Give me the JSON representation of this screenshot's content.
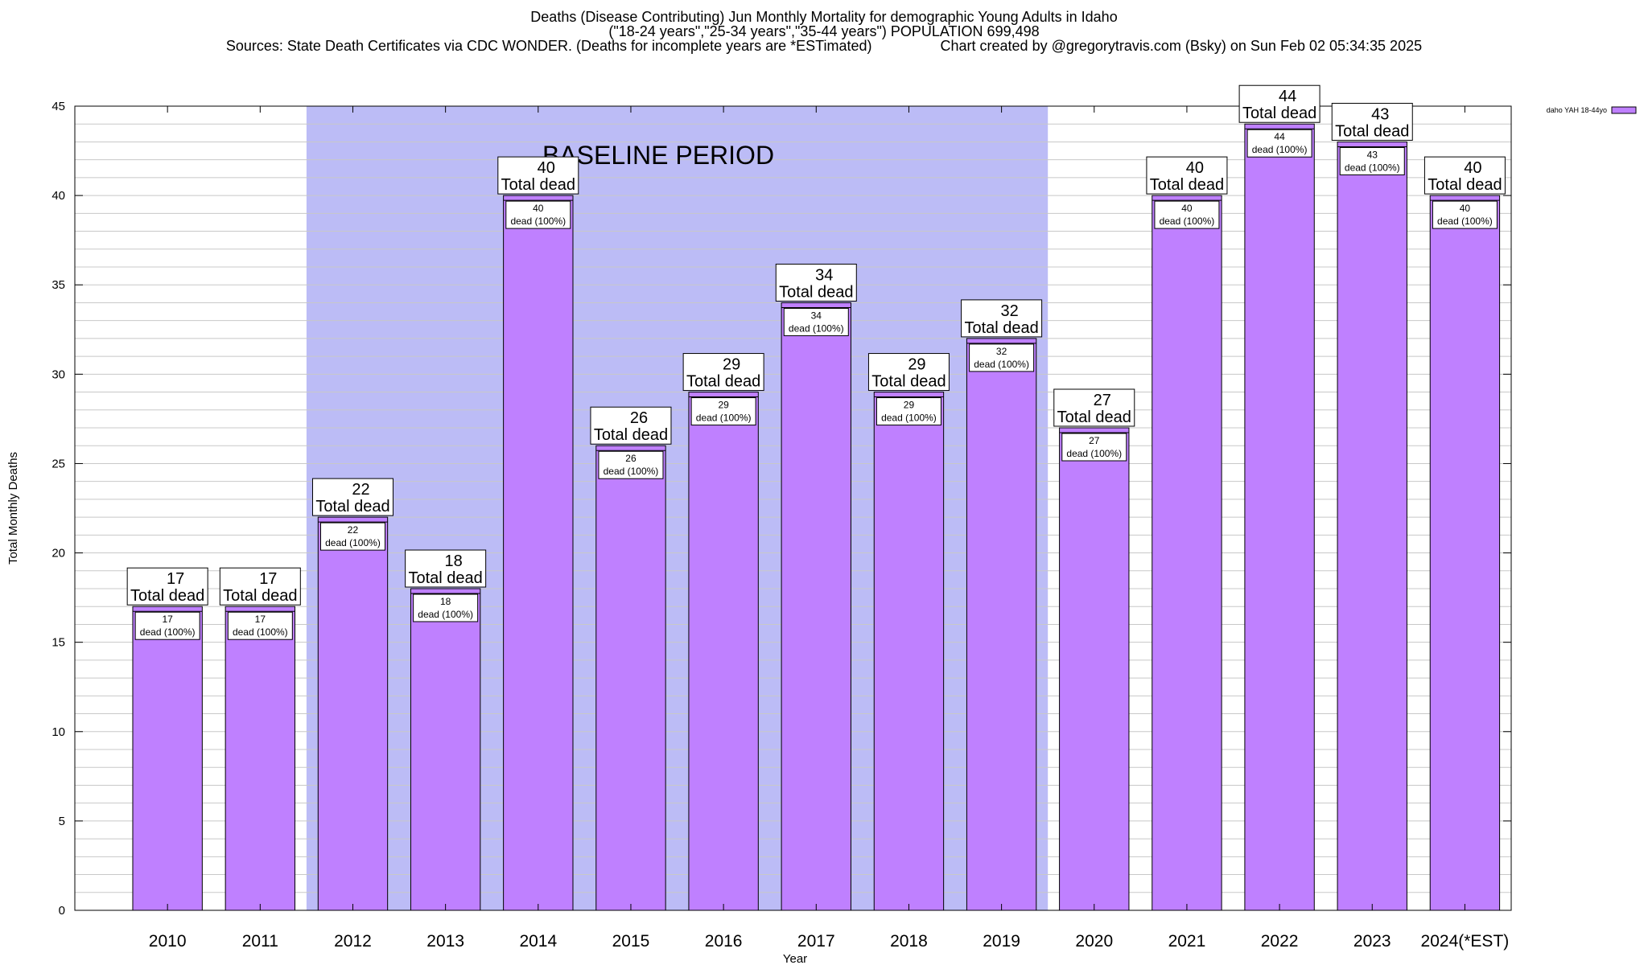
{
  "header": {
    "title": "Deaths (Disease Contributing) Jun Monthly Mortality for demographic Young Adults in Idaho",
    "subtitle": "(\"18-24 years\",\"25-34 years\",\"35-44 years\") POPULATION 699,498",
    "source": "Sources: State Death Certificates via CDC WONDER. (Deaths for incomplete years are *ESTimated)",
    "credit": "Chart created by @gregorytravis.com (Bsky) on Sun Feb 02 05:34:35 2025"
  },
  "chart_data": {
    "type": "bar",
    "categories": [
      "2010",
      "2011",
      "2012",
      "2013",
      "2014",
      "2015",
      "2016",
      "2017",
      "2018",
      "2019",
      "2020",
      "2021",
      "2022",
      "2023",
      "2024(*EST)"
    ],
    "series": [
      {
        "name": "daho YAH 18-44yo",
        "values": [
          17,
          17,
          22,
          18,
          40,
          26,
          29,
          34,
          29,
          32,
          27,
          40,
          44,
          43,
          40
        ],
        "color": "#bf80ff"
      }
    ],
    "total_label_suffix": "Total dead",
    "inner_label_line2": "dead (100%)",
    "xlabel": "Year",
    "ylabel": "Total Monthly Deaths",
    "ylim": [
      0,
      45
    ],
    "yticks": [
      0,
      5,
      10,
      15,
      20,
      25,
      30,
      35,
      40,
      45
    ],
    "grid": true,
    "baseline": {
      "label": "BASELINE PERIOD",
      "start": "2012",
      "end": "2019",
      "color": "#bcbcf6"
    },
    "legend": {
      "position": "top-right",
      "label": "daho YAH 18-44yo"
    }
  }
}
